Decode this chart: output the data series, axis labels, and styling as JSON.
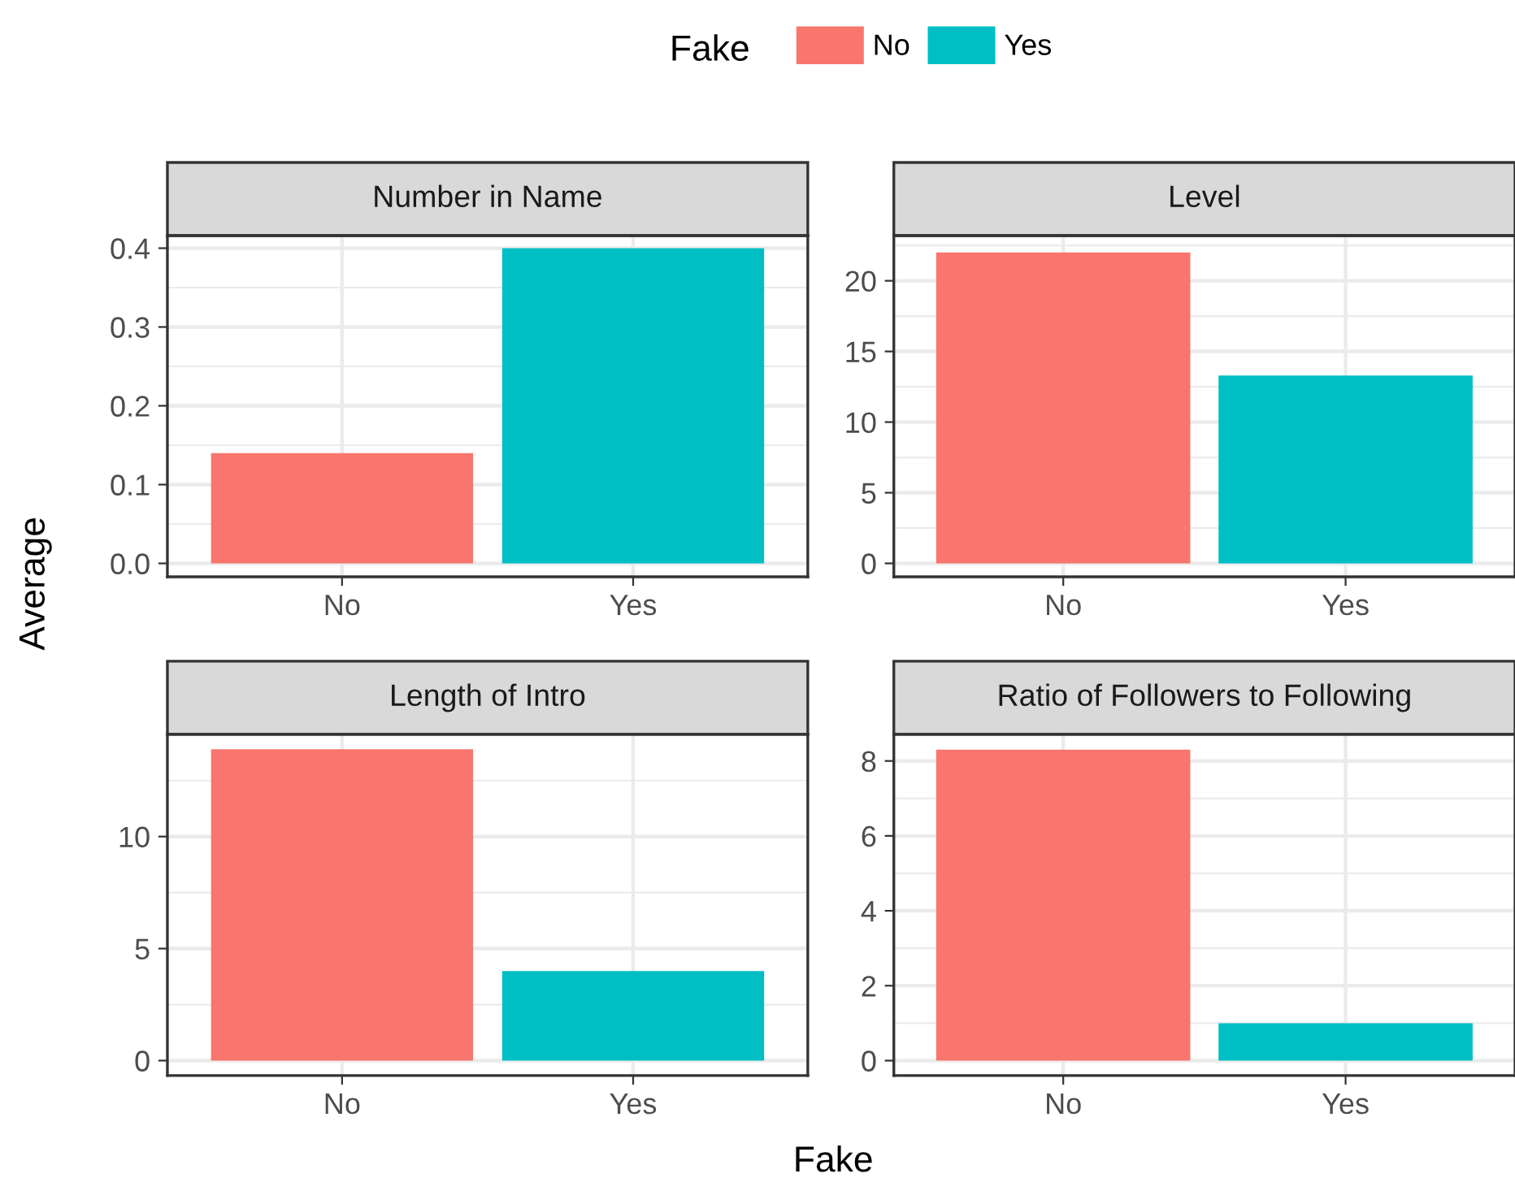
{
  "chart_data": [
    {
      "type": "bar",
      "title": "Number in Name",
      "ylabel": "Average",
      "legend": "top",
      "legend_title": "Fake",
      "categories": [
        "No",
        "Yes"
      ],
      "ylim": [
        -0.017,
        0.416
      ],
      "yticks": [
        {
          "value": 0,
          "label": "0.0"
        },
        0.1,
        0.2,
        0.3,
        0.4
      ],
      "grid": true,
      "series": [
        {
          "name": "No",
          "color": "#f8766d",
          "values": [
            0.14,
            null
          ]
        },
        {
          "name": "Yes",
          "color": "#00bfc4",
          "values": [
            null,
            0.4
          ]
        }
      ]
    },
    {
      "type": "bar",
      "title": "Level",
      "categories": [
        "No",
        "Yes"
      ],
      "ylim": [
        -0.95,
        23.2
      ],
      "yticks": [
        0,
        5,
        10,
        15,
        20
      ],
      "grid": true,
      "series": [
        {
          "color": "#f8766d",
          "values": [
            22.0,
            null
          ]
        },
        {
          "color": "#00bfc4",
          "values": [
            null,
            13.3
          ]
        }
      ]
    },
    {
      "type": "bar",
      "title": "Length of Intro",
      "xlabel": "Fake",
      "categories": [
        "No",
        "Yes"
      ],
      "ylim": [
        -0.67,
        14.56
      ],
      "yticks": [
        0,
        5,
        10
      ],
      "grid": true,
      "series": [
        {
          "color": "#f8766d",
          "values": [
            13.9,
            null
          ]
        },
        {
          "color": "#00bfc4",
          "values": [
            null,
            4.0
          ]
        }
      ]
    },
    {
      "type": "bar",
      "title": "Ratio of Followers to Following",
      "categories": [
        "No",
        "Yes"
      ],
      "ylim": [
        -0.4,
        8.71
      ],
      "yticks": [
        0,
        2,
        4,
        6,
        8
      ],
      "grid": true,
      "series": [
        {
          "color": "#f8766d",
          "values": [
            8.3,
            null
          ]
        },
        {
          "color": "#00bfc4",
          "values": [
            null,
            1.0
          ]
        }
      ]
    }
  ]
}
